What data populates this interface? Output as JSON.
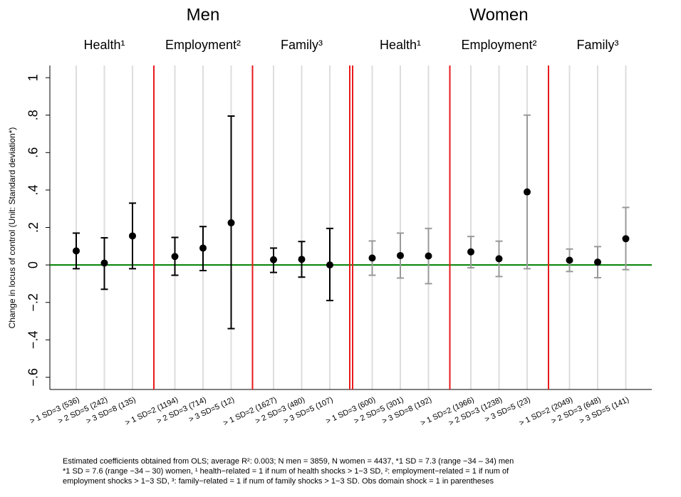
{
  "chart_data": {
    "type": "errorbar",
    "ylabel": "Change in locus of control (Unit: Standard deviation*)",
    "ylim": [
      -0.665,
      1.065
    ],
    "yticks": [
      {
        "value": -0.6,
        "label": "−.6"
      },
      {
        "value": -0.4,
        "label": "−.4"
      },
      {
        "value": -0.2,
        "label": "−.2"
      },
      0,
      {
        "value": 0.2,
        "label": ".2"
      },
      {
        "value": 0.4,
        "label": ".4"
      },
      {
        "value": 0.6,
        "label": ".6"
      },
      {
        "value": 0.8,
        "label": ".8"
      },
      1
    ],
    "grid": true,
    "reference_line": {
      "value": 0,
      "color": "#008000"
    },
    "divider_color": "#e8191c",
    "groups": [
      {
        "name": "Men",
        "domains": [
          "Health¹",
          "Employment²",
          "Family³"
        ],
        "marker_color": "#000000",
        "bar_color": "#000000",
        "categories": [
          "> 1 SD=3 (536)",
          "> 2 SD=5 (242)",
          "> 3 SD=8 (135)",
          "> 1 SD=2 (1194)",
          "> 2 SD=3 (714)",
          "> 3 SD=5 (12)",
          "> 1 SD=2 (1627)",
          "> 2 SD=3 (480)",
          "> 3 SD=5 (107)"
        ],
        "values": [
          0.075,
          0.01,
          0.155,
          0.045,
          0.09,
          0.225,
          0.028,
          0.03,
          0.0
        ],
        "lower": [
          -0.02,
          -0.13,
          -0.02,
          -0.055,
          -0.03,
          -0.34,
          -0.04,
          -0.065,
          -0.19
        ],
        "upper": [
          0.17,
          0.145,
          0.33,
          0.147,
          0.205,
          0.795,
          0.09,
          0.125,
          0.195
        ]
      },
      {
        "name": "Women",
        "domains": [
          "Health¹",
          "Employment²",
          "Family³"
        ],
        "marker_color": "#000000",
        "bar_color": "#999999",
        "categories": [
          "> 1 SD=3 (600)",
          "> 2 SD=5 (301)",
          "> 3 SD=8 (192)",
          "> 1 SD=2 (1966)",
          "> 2 SD=3 (1238)",
          "> 3 SD=5 (23)",
          "> 1 SD=2 (2049)",
          "> 2 SD=3 (648)",
          "> 3 SD=5 (141)"
        ],
        "values": [
          0.037,
          0.05,
          0.048,
          0.07,
          0.033,
          0.39,
          0.025,
          0.015,
          0.14
        ],
        "lower": [
          -0.055,
          -0.07,
          -0.1,
          -0.015,
          -0.062,
          -0.02,
          -0.035,
          -0.068,
          -0.025
        ],
        "upper": [
          0.128,
          0.17,
          0.195,
          0.152,
          0.127,
          0.8,
          0.085,
          0.098,
          0.307
        ]
      }
    ],
    "footnote": [
      "Estimated coefficients obtained from OLS; average R²: 0.003; N men = 3859, N women = 4437, *1 SD = 7.3 (range −34 – 34) men",
      "*1 SD = 7.6 (range −34 – 30) women, ¹ health−related = 1 if num of health shocks > 1−3 SD, ²: employment−related = 1 if num of",
      "employment shocks > 1−3 SD, ³: family−related = 1 if num of family shocks > 1−3 SD. Obs domain shock = 1 in parentheses"
    ]
  }
}
